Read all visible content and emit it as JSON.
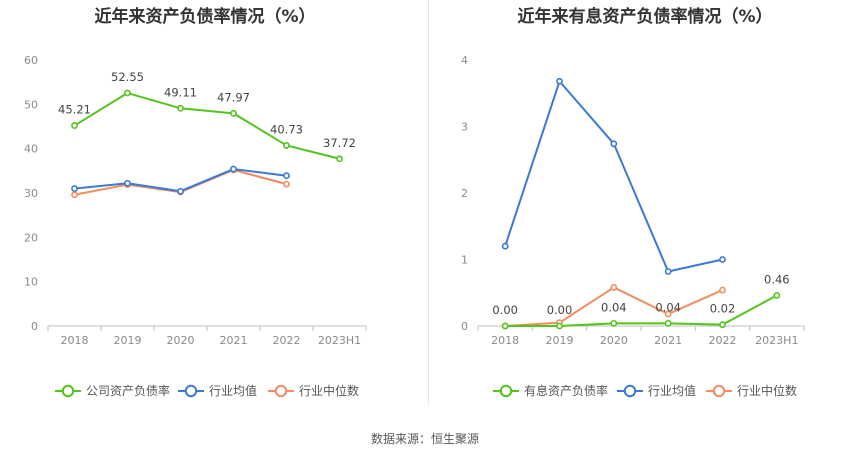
{
  "source_text": "数据来源：恒生聚源",
  "chart_data": [
    {
      "type": "line",
      "title": "近年来资产负债率情况（%）",
      "categories": [
        "2018",
        "2019",
        "2020",
        "2021",
        "2022",
        "2023H1"
      ],
      "ylim": [
        0,
        60
      ],
      "yticks": [
        0,
        10,
        20,
        30,
        40,
        50,
        60
      ],
      "grid": false,
      "legend_position": "bottom",
      "series": [
        {
          "name": "公司资产负债率",
          "color": "#52c41a",
          "values": [
            45.21,
            52.55,
            49.11,
            47.97,
            40.73,
            37.72
          ],
          "labels": [
            "45.21",
            "52.55",
            "49.11",
            "47.97",
            "40.73",
            "37.72"
          ]
        },
        {
          "name": "行业均值",
          "color": "#3a78d8",
          "values": [
            31.0,
            32.2,
            30.4,
            35.4,
            33.9,
            null
          ]
        },
        {
          "name": "行业中位数",
          "color": "#f08c5e",
          "values": [
            29.6,
            31.9,
            30.2,
            35.2,
            32.0,
            null
          ]
        }
      ]
    },
    {
      "type": "line",
      "title": "近年来有息资产负债率情况（%）",
      "categories": [
        "2018",
        "2019",
        "2020",
        "2021",
        "2022",
        "2023H1"
      ],
      "ylim": [
        0,
        4
      ],
      "yticks": [
        0,
        1,
        2,
        3,
        4
      ],
      "grid": false,
      "legend_position": "bottom",
      "series": [
        {
          "name": "有息资产负债率",
          "color": "#52c41a",
          "values": [
            0.0,
            0.0,
            0.04,
            0.04,
            0.02,
            0.46
          ],
          "labels": [
            "0.00",
            "0.00",
            "0.04",
            "0.04",
            "0.02",
            "0.46"
          ]
        },
        {
          "name": "行业均值",
          "color": "#3a78d8",
          "values": [
            1.2,
            3.68,
            2.74,
            0.82,
            1.0,
            null
          ]
        },
        {
          "name": "行业中位数",
          "color": "#f08c5e",
          "values": [
            0.0,
            0.05,
            0.58,
            0.18,
            0.54,
            null
          ]
        }
      ]
    }
  ]
}
